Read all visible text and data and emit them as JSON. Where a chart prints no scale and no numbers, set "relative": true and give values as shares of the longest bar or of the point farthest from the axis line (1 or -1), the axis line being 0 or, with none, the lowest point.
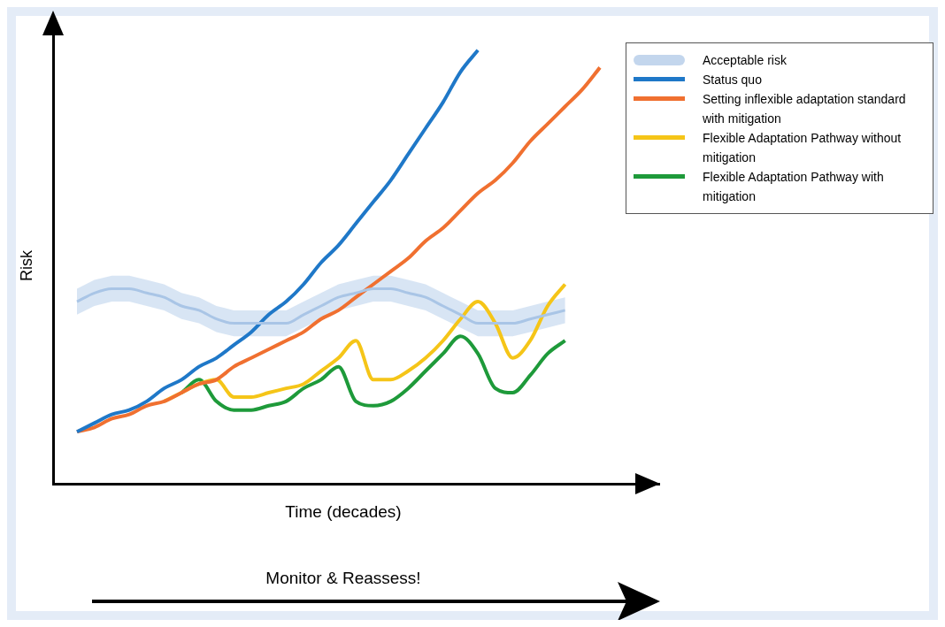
{
  "chart_data": {
    "type": "line",
    "relative": true,
    "xlabel": "Time (decades)",
    "ylabel": "Risk",
    "annotations": [
      "Monitor & Reassess!"
    ],
    "legend": "top right",
    "grid": false,
    "marker": "none",
    "categories": [
      null,
      null,
      null,
      null,
      null,
      null,
      null,
      null,
      null,
      null,
      null,
      null,
      null,
      null,
      null,
      null,
      null,
      null,
      null,
      null,
      null,
      null,
      null,
      null,
      null,
      null,
      null,
      null,
      null,
      null,
      null
    ],
    "series": [
      {
        "name": "Acceptable risk",
        "color": "#a9c5e6",
        "values": [
          0.42,
          0.44,
          0.45,
          0.45,
          0.44,
          0.43,
          0.41,
          0.4,
          0.38,
          0.37,
          0.37,
          0.37,
          0.37,
          0.39,
          0.41,
          0.43,
          0.44,
          0.45,
          0.45,
          0.44,
          0.43,
          0.41,
          0.39,
          0.37,
          0.37,
          0.37,
          0.38,
          0.39,
          0.4,
          null,
          null
        ],
        "lower": [
          0.39,
          0.41,
          0.42,
          0.42,
          0.41,
          0.4,
          0.38,
          0.37,
          0.35,
          0.34,
          0.34,
          0.34,
          0.34,
          0.36,
          0.38,
          0.4,
          0.41,
          0.42,
          0.42,
          0.41,
          0.4,
          0.38,
          0.36,
          0.34,
          0.34,
          0.34,
          0.35,
          0.36,
          0.37,
          null,
          null
        ],
        "upper": [
          0.45,
          0.47,
          0.48,
          0.48,
          0.47,
          0.46,
          0.44,
          0.43,
          0.41,
          0.4,
          0.4,
          0.4,
          0.4,
          0.42,
          0.44,
          0.46,
          0.47,
          0.48,
          0.48,
          0.47,
          0.46,
          0.44,
          0.42,
          0.4,
          0.4,
          0.4,
          0.41,
          0.42,
          0.43,
          null,
          null
        ]
      },
      {
        "name": "Status quo",
        "color": "#1f78c8",
        "values": [
          0.12,
          0.14,
          0.16,
          0.17,
          0.19,
          0.22,
          0.24,
          0.27,
          0.29,
          0.32,
          0.35,
          0.39,
          0.42,
          0.46,
          0.51,
          0.55,
          0.6,
          0.65,
          0.7,
          0.76,
          0.82,
          0.88,
          0.95,
          1.0,
          null,
          null,
          null,
          null,
          null,
          null,
          null
        ]
      },
      {
        "name": "Setting inflexible adaptation standard with mitigation",
        "color": "#f07030",
        "values": [
          0.12,
          0.13,
          0.15,
          0.16,
          0.18,
          0.19,
          0.21,
          0.23,
          0.24,
          0.27,
          0.29,
          0.31,
          0.33,
          0.35,
          0.38,
          0.4,
          0.43,
          0.46,
          0.49,
          0.52,
          0.56,
          0.59,
          0.63,
          0.67,
          0.7,
          0.74,
          0.79,
          0.83,
          0.87,
          0.91,
          0.96
        ]
      },
      {
        "name": "Flexible Adaptation Pathway without mitigation",
        "color": "#f5c518",
        "values": [
          null,
          null,
          null,
          null,
          null,
          0.19,
          0.21,
          0.23,
          0.24,
          0.2,
          0.2,
          0.21,
          0.22,
          0.23,
          0.26,
          0.29,
          0.33,
          0.24,
          0.24,
          0.26,
          0.29,
          0.33,
          0.38,
          0.42,
          0.37,
          0.29,
          0.33,
          0.41,
          0.46,
          null,
          null
        ]
      },
      {
        "name": "Flexible Adaptation Pathway with mitigation",
        "color": "#1e9a3a",
        "values": [
          null,
          null,
          null,
          null,
          null,
          null,
          0.21,
          0.24,
          0.19,
          0.17,
          0.17,
          0.18,
          0.19,
          0.22,
          0.24,
          0.27,
          0.19,
          0.18,
          0.19,
          0.22,
          0.26,
          0.3,
          0.34,
          0.3,
          0.22,
          0.21,
          0.25,
          0.3,
          0.33,
          null,
          null
        ]
      }
    ]
  }
}
